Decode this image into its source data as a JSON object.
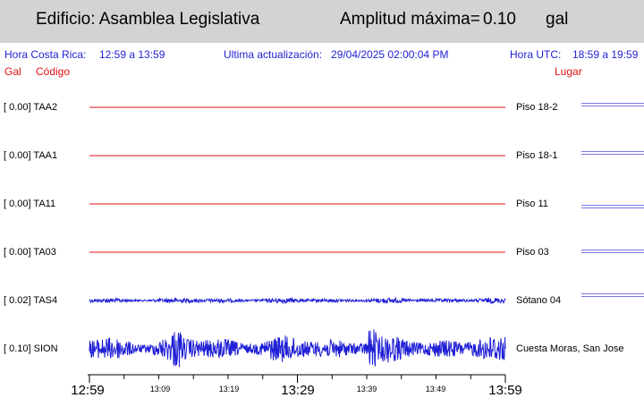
{
  "header": {
    "building": "Edificio: Asamblea Legislativa",
    "amplitude_label": "Amplitud máxima=",
    "amplitude_value": "0.10",
    "amplitude_unit": "gal"
  },
  "info": {
    "local_time_label": "Hora Costa Rica:",
    "local_time_range": "12:59 a 13:59",
    "updated_label": "Ultima actualización:",
    "updated_value": "29/04/2025 02:00:04 PM",
    "utc_label": "Hora UTC:",
    "utc_range": "18:59 a 19:59"
  },
  "columns": {
    "gal": "Gal",
    "code": "Código",
    "place": "Lugar"
  },
  "colors": {
    "flat_trace": "#e01010",
    "signal_trace": "#1f1fd6",
    "title_bg": "#d3d3d3",
    "scale_mark": "#7a7ae6"
  },
  "chart_data": {
    "type": "line",
    "title": "",
    "xlabel": "",
    "ylabel": "",
    "x_range": [
      "12:59",
      "13:59"
    ],
    "x_ticks_major": [
      "12:59",
      "13:29",
      "13:59"
    ],
    "x_ticks_minor": [
      "13:09",
      "13:19",
      "13:39",
      "13:49"
    ],
    "series": [
      {
        "name": "TAA2",
        "label": "[   0.00] TAA2",
        "place": "Piso 18-2",
        "peak_gal": 0.0,
        "color": "#e01010"
      },
      {
        "name": "TAA1",
        "label": "[   0.00] TAA1",
        "place": "Piso 18-1",
        "peak_gal": 0.0,
        "color": "#e01010"
      },
      {
        "name": "TA11",
        "label": "[   0.00] TA11",
        "place": "Piso 11",
        "peak_gal": 0.0,
        "color": "#e01010"
      },
      {
        "name": "TA03",
        "label": "[   0.00] TA03",
        "place": "Piso 03",
        "peak_gal": 0.0,
        "color": "#e01010"
      },
      {
        "name": "TAS4",
        "label": "[   0.02] TAS4",
        "place": "Sótano 04",
        "peak_gal": 0.02,
        "color": "#1f1fd6"
      },
      {
        "name": "SION",
        "label": "[   0.10] SION",
        "place": "Cuesta Moras, San Jose",
        "peak_gal": 0.1,
        "color": "#1f1fd6"
      }
    ]
  }
}
